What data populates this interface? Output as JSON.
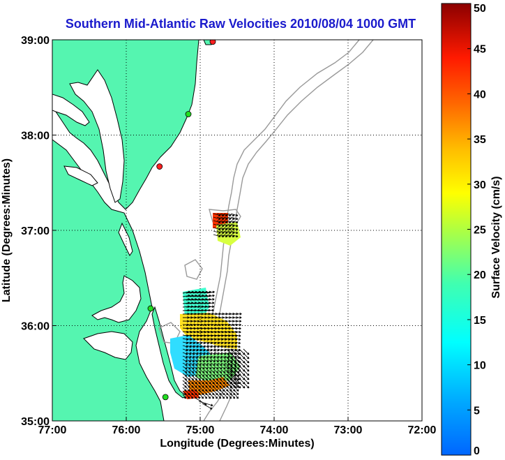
{
  "title": "Southern Mid-Atlantic Raw Velocities 2010/08/04 1000 GMT",
  "map": {
    "xlabel": "Longitude (Degrees:Minutes)",
    "ylabel": "Latitude (Degrees:Minutes)",
    "x_ticks": [
      {
        "lon": -77,
        "label": "77:00"
      },
      {
        "lon": -76,
        "label": "76:00"
      },
      {
        "lon": -75,
        "label": "75:00"
      },
      {
        "lon": -74,
        "label": "74:00"
      },
      {
        "lon": -73,
        "label": "73:00"
      },
      {
        "lon": -72,
        "label": "72:00"
      }
    ],
    "y_ticks": [
      {
        "lat": 39,
        "label": "39:00"
      },
      {
        "lat": 38,
        "label": "38:00"
      },
      {
        "lat": 37,
        "label": "37:00"
      },
      {
        "lat": 36,
        "label": "36:00"
      },
      {
        "lat": 35,
        "label": "35:00"
      }
    ],
    "lon_range": [
      -77,
      -72
    ],
    "lat_range": [
      35,
      39
    ],
    "grid": "dotted",
    "land_color": "#55f5b0",
    "contour_color": "#999999",
    "stations": [
      {
        "lon": -74.83,
        "lat": 38.98,
        "color": "#ff2020"
      },
      {
        "lon": -75.16,
        "lat": 38.22,
        "color": "#22dd22"
      },
      {
        "lon": -75.55,
        "lat": 37.67,
        "color": "#ff2020"
      },
      {
        "lon": -75.67,
        "lat": 36.18,
        "color": "#22dd22"
      },
      {
        "lon": -75.47,
        "lat": 35.25,
        "color": "#22dd22"
      }
    ]
  },
  "colorbar": {
    "label": "Surface Velocity (cm/s)",
    "min": 0,
    "max": 50,
    "ticks": [
      {
        "value": 0,
        "label": "0"
      },
      {
        "value": 5,
        "label": "5"
      },
      {
        "value": 10,
        "label": "10"
      },
      {
        "value": 15,
        "label": "15"
      },
      {
        "value": 20,
        "label": "20"
      },
      {
        "value": 25,
        "label": "25"
      },
      {
        "value": 30,
        "label": "30"
      },
      {
        "value": 35,
        "label": "35"
      },
      {
        "value": 40,
        "label": "40"
      },
      {
        "value": 45,
        "label": "45"
      },
      {
        "value": 50,
        "label": "50"
      }
    ]
  }
}
